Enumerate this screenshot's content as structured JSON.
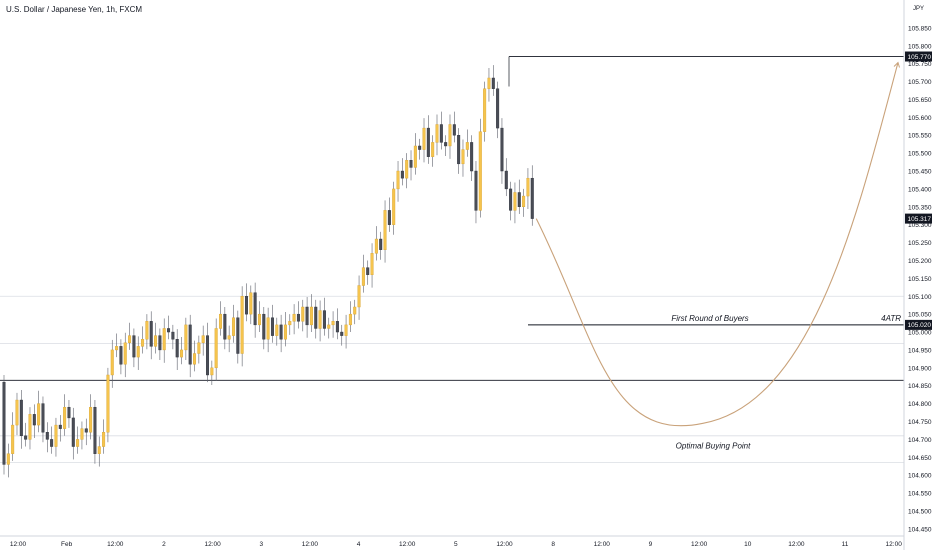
{
  "title": "U.S. Dollar / Japanese Yen, 1h, FXCM",
  "currency_label": "JPY",
  "chart_data": {
    "type": "candlestick",
    "ylim": [
      104.43,
      105.9
    ],
    "y_ticks": [
      "105.850",
      "105.800",
      "105.750",
      "105.700",
      "105.650",
      "105.600",
      "105.550",
      "105.500",
      "105.450",
      "105.400",
      "105.350",
      "105.300",
      "105.250",
      "105.200",
      "105.150",
      "105.100",
      "105.050",
      "105.000",
      "104.950",
      "104.900",
      "104.850",
      "104.800",
      "104.750",
      "104.700",
      "104.650",
      "104.600",
      "104.550",
      "104.500",
      "104.450"
    ],
    "x_ticks": [
      "12:00",
      "Feb",
      "12:00",
      "2",
      "12:00",
      "3",
      "12:00",
      "4",
      "12:00",
      "5",
      "12:00",
      "8",
      "12:00",
      "9",
      "12:00",
      "10",
      "12:00",
      "11",
      "12:00"
    ],
    "price_tags": [
      {
        "label": "105.770",
        "value": 105.77,
        "color": "#131722"
      },
      {
        "label": "105.317",
        "value": 105.317,
        "color": "#131722"
      },
      {
        "label": "105.020",
        "value": 105.02,
        "color": "#131722"
      }
    ],
    "candles_close": [
      104.63,
      104.66,
      104.74,
      104.81,
      104.71,
      104.7,
      104.77,
      104.74,
      104.8,
      104.72,
      104.7,
      104.68,
      104.74,
      104.73,
      104.79,
      104.76,
      104.68,
      104.7,
      104.73,
      104.72,
      104.79,
      104.66,
      104.68,
      104.72,
      104.88,
      104.95,
      104.96,
      104.91,
      104.97,
      104.99,
      104.93,
      104.96,
      104.98,
      105.03,
      104.96,
      104.99,
      104.95,
      105.01,
      105.0,
      104.98,
      104.93,
      104.95,
      105.02,
      104.91,
      104.94,
      104.97,
      104.99,
      104.88,
      104.9,
      105.01,
      105.05,
      104.98,
      104.99,
      105.04,
      104.94,
      105.1,
      105.05,
      105.11,
      105.02,
      105.05,
      104.98,
      105.04,
      104.99,
      105.02,
      104.98,
      105.02,
      105.03,
      105.05,
      105.03,
      105.07,
      105.02,
      105.07,
      105.01,
      105.06,
      105.01,
      105.02,
      105.03,
      105.0,
      104.99,
      105.02,
      105.05,
      105.07,
      105.13,
      105.18,
      105.16,
      105.22,
      105.26,
      105.23,
      105.34,
      105.3,
      105.4,
      105.45,
      105.43,
      105.48,
      105.46,
      105.52,
      105.51,
      105.57,
      105.49,
      105.53,
      105.58,
      105.53,
      105.52,
      105.58,
      105.55,
      105.47,
      105.51,
      105.53,
      105.45,
      105.34,
      105.56,
      105.68,
      105.71,
      105.68,
      105.57,
      105.45,
      105.4,
      105.34,
      105.39,
      105.35,
      105.38,
      105.43,
      105.317
    ],
    "levels": [
      {
        "value": 104.865,
        "style": "solid"
      },
      {
        "value": 105.1,
        "style": "faint"
      },
      {
        "value": 104.968,
        "style": "faint"
      },
      {
        "value": 104.71,
        "style": "faint"
      },
      {
        "value": 104.635,
        "style": "faint"
      }
    ],
    "top_level": 105.77,
    "buy_level": 105.02,
    "projection": {
      "start": 105.317,
      "bottom": 104.745,
      "end": 105.77
    },
    "annotations": [
      {
        "text": "First Round of Buyers"
      },
      {
        "text": "4ATR"
      },
      {
        "text": "Optimal Buying Point"
      }
    ]
  }
}
